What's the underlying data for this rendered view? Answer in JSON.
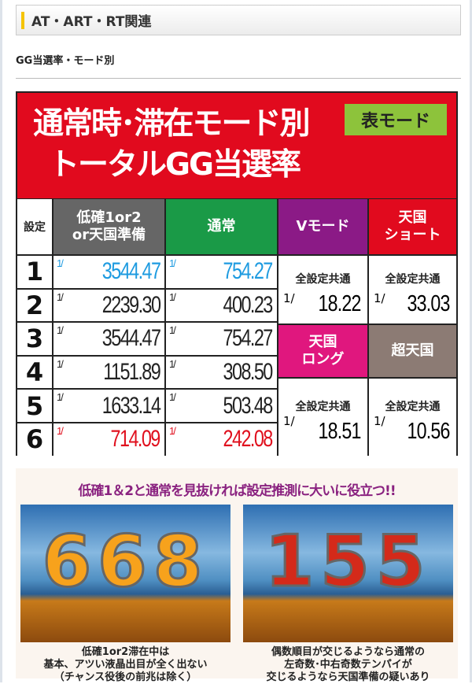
{
  "section_title": "AT・ART・RT関連",
  "sub_title": "GG当選率・モード別",
  "infographic": {
    "title_line1": "通常時･滞在モード別",
    "title_line2": "トータルGG当選率",
    "badge": "表モード",
    "headers": {
      "setting": "設定",
      "low": "低確1or2\nor天国準備",
      "normal": "通常",
      "v_mode": "Vモード",
      "heaven_short": "天国\nショート",
      "heaven_long": "天国\nロング",
      "super_heaven": "超天国"
    },
    "fraction": "1/",
    "common_label": "全設定共通",
    "rows": [
      {
        "setting": "1",
        "low": "3544.47",
        "normal": "754.27",
        "color": "#1e9be0"
      },
      {
        "setting": "2",
        "low": "2239.30",
        "normal": "400.23",
        "color": "#222222"
      },
      {
        "setting": "3",
        "low": "3544.47",
        "normal": "754.27",
        "color": "#222222"
      },
      {
        "setting": "4",
        "low": "1151.89",
        "normal": "308.50",
        "color": "#222222"
      },
      {
        "setting": "5",
        "low": "1633.14",
        "normal": "503.48",
        "color": "#222222"
      },
      {
        "setting": "6",
        "low": "714.09",
        "normal": "242.08",
        "color": "#e0101e"
      }
    ],
    "v_mode_value": "18.22",
    "heaven_short_value": "33.03",
    "heaven_long_value": "18.51",
    "super_heaven_value": "10.56",
    "colors": {
      "title": "#e10a1e",
      "badge": "#8dc33b",
      "low": "#666666",
      "normal": "#1a9a47",
      "v_mode": "#8b1a86",
      "heaven_short": "#e10a1e",
      "heaven_long": "#e0177e",
      "super_heaven": "#8c7b74"
    }
  },
  "tips": {
    "headline": "低確1＆2と通常を見抜ければ設定推測に大いに役立つ!!",
    "left_digits": "668",
    "right_digits": "155",
    "left_caption": "低確1or2滞在中は\n基本、アツい液晶出目が全く出ない\n（チャンス役後の前兆は除く）",
    "right_caption": "偶数順目が交じるようなら通常の\n左奇数･中右奇数テンパイが\n交じるようなら天国準備の疑いあり"
  }
}
